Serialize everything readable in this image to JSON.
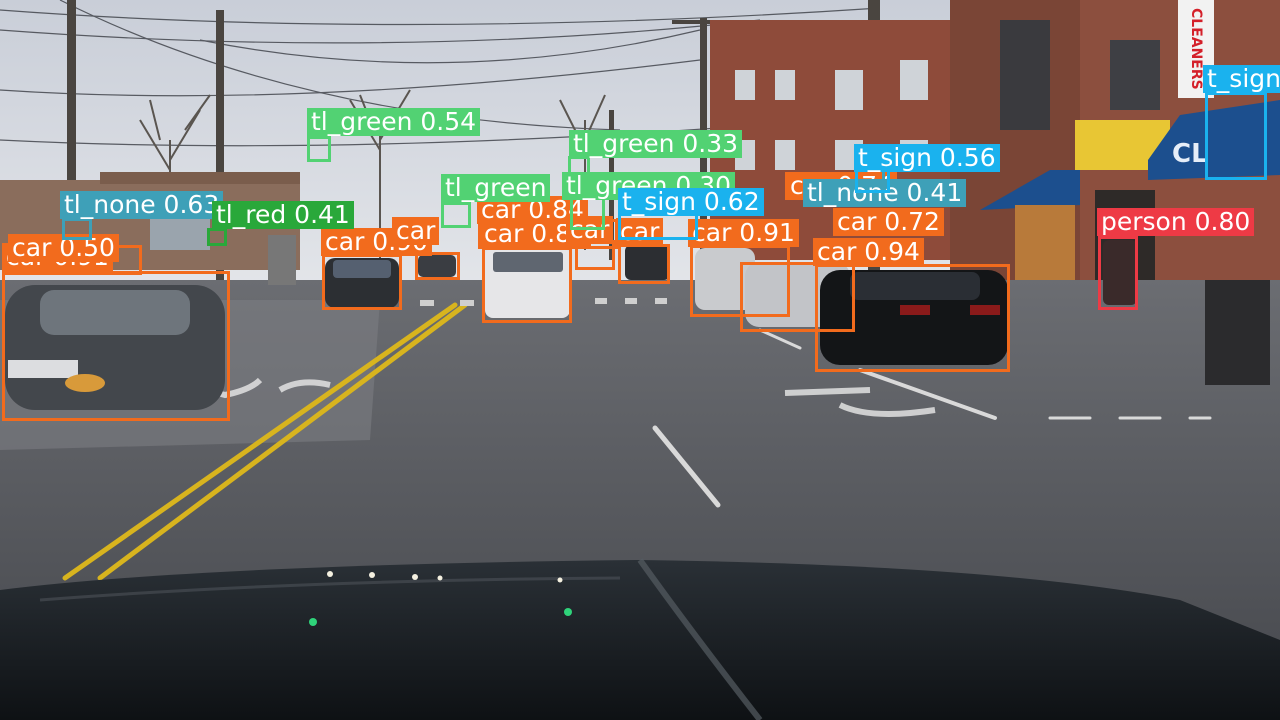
{
  "colors": {
    "car": "#f26b1d",
    "tl_green": "#52d273",
    "tl_none": "#3ea0b8",
    "tl_red": "#29a83a",
    "t_sign": "#1ab2ee",
    "person": "#ee3a45"
  },
  "scene": {
    "signs": {
      "cleaners": "CLEANERS",
      "cl": "CL"
    }
  },
  "detections": [
    {
      "cls": "car",
      "label": "car 0.91"
    },
    {
      "cls": "car",
      "label": "car 0.50"
    },
    {
      "cls": "car",
      "label": "car 0.90"
    },
    {
      "cls": "car",
      "label": "car 0.85"
    },
    {
      "cls": "car",
      "label": "car 0.84"
    },
    {
      "cls": "car",
      "label": "car 0.91"
    },
    {
      "cls": "car",
      "label": "car 0.94"
    },
    {
      "cls": "car",
      "label": "car 0.72"
    },
    {
      "cls": "car",
      "label": "car"
    },
    {
      "cls": "car",
      "label": "car"
    },
    {
      "cls": "car",
      "label": "car"
    },
    {
      "cls": "car",
      "label": "car 0.74"
    },
    {
      "cls": "tl_green",
      "label": "tl_green 0.54"
    },
    {
      "cls": "tl_green",
      "label": "tl_green 0.33"
    },
    {
      "cls": "tl_green",
      "label": "tl_green"
    },
    {
      "cls": "tl_green",
      "label": "tl_green 0.30"
    },
    {
      "cls": "tl_none",
      "label": "tl_none 0.63"
    },
    {
      "cls": "tl_none",
      "label": "tl_none 0.41"
    },
    {
      "cls": "tl_red",
      "label": "tl_red 0.41"
    },
    {
      "cls": "t_sign",
      "label": "t_sign 0.62"
    },
    {
      "cls": "t_sign",
      "label": "t_sign 0.56"
    },
    {
      "cls": "t_sign",
      "label": "t_sign"
    },
    {
      "cls": "person",
      "label": "person 0.80"
    }
  ]
}
